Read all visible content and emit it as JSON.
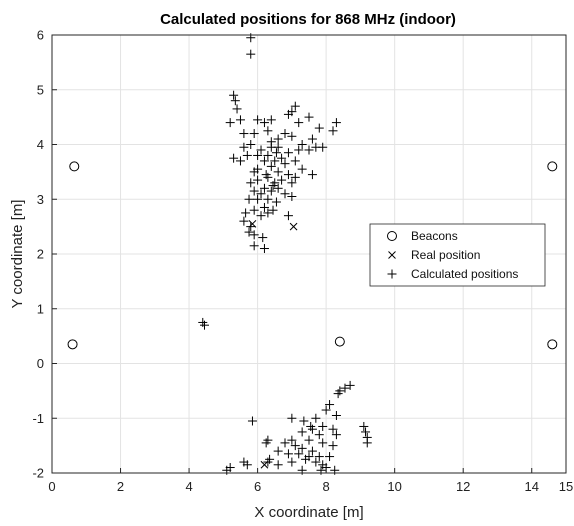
{
  "chart_data": {
    "type": "scatter",
    "title": "Calculated positions for 868 MHz (indoor)",
    "xlabel": "X coordinate [m]",
    "ylabel": "Y coordinate [m]",
    "xlim": [
      0,
      15
    ],
    "ylim": [
      -2,
      6
    ],
    "xticks": [
      0,
      2,
      4,
      6,
      8,
      10,
      12,
      14
    ],
    "xtick_labels": [
      "0",
      "2",
      "4",
      "6",
      "8",
      "10",
      "12",
      "14"
    ],
    "xtick_last_label": "15",
    "yticks": [
      -2,
      -1,
      0,
      1,
      2,
      3,
      4,
      5,
      6
    ],
    "ytick_labels": [
      "-2",
      "-1",
      "0",
      "1",
      "2",
      "3",
      "4",
      "5",
      "6"
    ],
    "grid": true,
    "legend_position": "right",
    "colors": {
      "marker": "#000000",
      "grid": "#e3e3e3",
      "axis": "#262626"
    },
    "series": [
      {
        "name": "Beacons",
        "marker": "circle",
        "points": [
          [
            0.65,
            3.6
          ],
          [
            0.6,
            0.35
          ],
          [
            8.4,
            0.4
          ],
          [
            14.6,
            3.6
          ],
          [
            14.6,
            0.35
          ]
        ]
      },
      {
        "name": "Real position",
        "marker": "x",
        "points": [
          [
            5.85,
            2.55
          ],
          [
            7.05,
            2.5
          ],
          [
            6.2,
            -1.85
          ]
        ]
      },
      {
        "name": "Calculated positions",
        "marker": "plus",
        "points": [
          [
            5.8,
            5.95
          ],
          [
            5.8,
            5.65
          ],
          [
            5.3,
            4.9
          ],
          [
            5.35,
            4.8
          ],
          [
            5.4,
            4.65
          ],
          [
            5.2,
            4.4
          ],
          [
            5.5,
            4.45
          ],
          [
            6.0,
            4.45
          ],
          [
            6.2,
            4.4
          ],
          [
            6.4,
            4.45
          ],
          [
            6.9,
            4.55
          ],
          [
            7.1,
            4.7
          ],
          [
            7.0,
            4.6
          ],
          [
            7.5,
            4.5
          ],
          [
            7.2,
            4.4
          ],
          [
            7.8,
            4.3
          ],
          [
            8.3,
            4.4
          ],
          [
            8.2,
            4.25
          ],
          [
            5.6,
            4.2
          ],
          [
            5.9,
            4.2
          ],
          [
            6.3,
            4.25
          ],
          [
            6.6,
            4.1
          ],
          [
            6.8,
            4.2
          ],
          [
            7.0,
            4.15
          ],
          [
            7.3,
            4.0
          ],
          [
            7.6,
            4.1
          ],
          [
            7.7,
            3.95
          ],
          [
            7.9,
            3.95
          ],
          [
            7.5,
            3.9
          ],
          [
            7.2,
            3.9
          ],
          [
            5.8,
            4.0
          ],
          [
            5.6,
            3.95
          ],
          [
            6.1,
            3.9
          ],
          [
            6.4,
            3.95
          ],
          [
            6.6,
            3.95
          ],
          [
            6.9,
            3.85
          ],
          [
            6.3,
            3.8
          ],
          [
            6.0,
            3.8
          ],
          [
            5.7,
            3.8
          ],
          [
            5.3,
            3.75
          ],
          [
            5.5,
            3.7
          ],
          [
            6.2,
            3.7
          ],
          [
            6.5,
            3.7
          ],
          [
            6.8,
            3.65
          ],
          [
            7.1,
            3.7
          ],
          [
            7.3,
            3.55
          ],
          [
            6.4,
            3.6
          ],
          [
            6.0,
            3.55
          ],
          [
            5.9,
            3.5
          ],
          [
            6.6,
            3.5
          ],
          [
            6.9,
            3.45
          ],
          [
            7.1,
            3.4
          ],
          [
            7.6,
            3.45
          ],
          [
            6.3,
            3.4
          ],
          [
            6.0,
            3.35
          ],
          [
            5.8,
            3.3
          ],
          [
            6.5,
            3.3
          ],
          [
            6.7,
            3.35
          ],
          [
            7.0,
            3.3
          ],
          [
            6.2,
            3.2
          ],
          [
            6.4,
            3.15
          ],
          [
            6.6,
            3.2
          ],
          [
            5.9,
            3.15
          ],
          [
            6.1,
            3.1
          ],
          [
            6.8,
            3.1
          ],
          [
            7.0,
            3.05
          ],
          [
            5.75,
            3.0
          ],
          [
            6.0,
            3.0
          ],
          [
            6.3,
            3.0
          ],
          [
            6.55,
            2.95
          ],
          [
            6.2,
            2.85
          ],
          [
            6.45,
            2.8
          ],
          [
            5.9,
            2.8
          ],
          [
            6.1,
            2.7
          ],
          [
            6.3,
            2.75
          ],
          [
            5.65,
            2.75
          ],
          [
            5.6,
            2.6
          ],
          [
            5.8,
            2.5
          ],
          [
            5.75,
            2.4
          ],
          [
            5.9,
            2.35
          ],
          [
            6.9,
            2.7
          ],
          [
            6.15,
            2.3
          ],
          [
            5.9,
            2.15
          ],
          [
            6.2,
            2.1
          ],
          [
            6.4,
            4.05
          ],
          [
            6.55,
            3.85
          ],
          [
            6.7,
            3.75
          ],
          [
            6.25,
            3.45
          ],
          [
            6.45,
            3.25
          ],
          [
            4.4,
            0.75
          ],
          [
            4.45,
            0.7
          ],
          [
            8.7,
            -0.4
          ],
          [
            8.55,
            -0.45
          ],
          [
            8.4,
            -0.5
          ],
          [
            8.35,
            -0.55
          ],
          [
            8.1,
            -0.75
          ],
          [
            8.0,
            -0.85
          ],
          [
            8.3,
            -0.95
          ],
          [
            7.7,
            -1.0
          ],
          [
            7.0,
            -1.0
          ],
          [
            7.35,
            -1.05
          ],
          [
            7.55,
            -1.15
          ],
          [
            5.85,
            -1.05
          ],
          [
            9.1,
            -1.15
          ],
          [
            9.15,
            -1.25
          ],
          [
            9.2,
            -1.35
          ],
          [
            7.3,
            -1.25
          ],
          [
            7.6,
            -1.2
          ],
          [
            7.9,
            -1.15
          ],
          [
            8.2,
            -1.2
          ],
          [
            8.3,
            -1.3
          ],
          [
            7.8,
            -1.3
          ],
          [
            6.3,
            -1.4
          ],
          [
            6.25,
            -1.45
          ],
          [
            6.8,
            -1.45
          ],
          [
            7.0,
            -1.4
          ],
          [
            7.5,
            -1.4
          ],
          [
            7.9,
            -1.45
          ],
          [
            8.2,
            -1.5
          ],
          [
            9.2,
            -1.45
          ],
          [
            7.1,
            -1.5
          ],
          [
            7.3,
            -1.55
          ],
          [
            7.6,
            -1.6
          ],
          [
            6.6,
            -1.6
          ],
          [
            6.9,
            -1.65
          ],
          [
            7.2,
            -1.65
          ],
          [
            7.5,
            -1.7
          ],
          [
            7.8,
            -1.7
          ],
          [
            8.1,
            -1.7
          ],
          [
            7.4,
            -1.75
          ],
          [
            7.0,
            -1.8
          ],
          [
            7.7,
            -1.8
          ],
          [
            6.3,
            -1.8
          ],
          [
            6.35,
            -1.75
          ],
          [
            7.9,
            -1.85
          ],
          [
            8.0,
            -1.9
          ],
          [
            7.85,
            -1.95
          ],
          [
            8.25,
            -1.95
          ],
          [
            7.3,
            -1.95
          ],
          [
            5.7,
            -1.85
          ],
          [
            5.6,
            -1.8
          ],
          [
            5.2,
            -1.9
          ],
          [
            5.1,
            -1.95
          ],
          [
            6.6,
            -1.85
          ]
        ]
      }
    ]
  }
}
